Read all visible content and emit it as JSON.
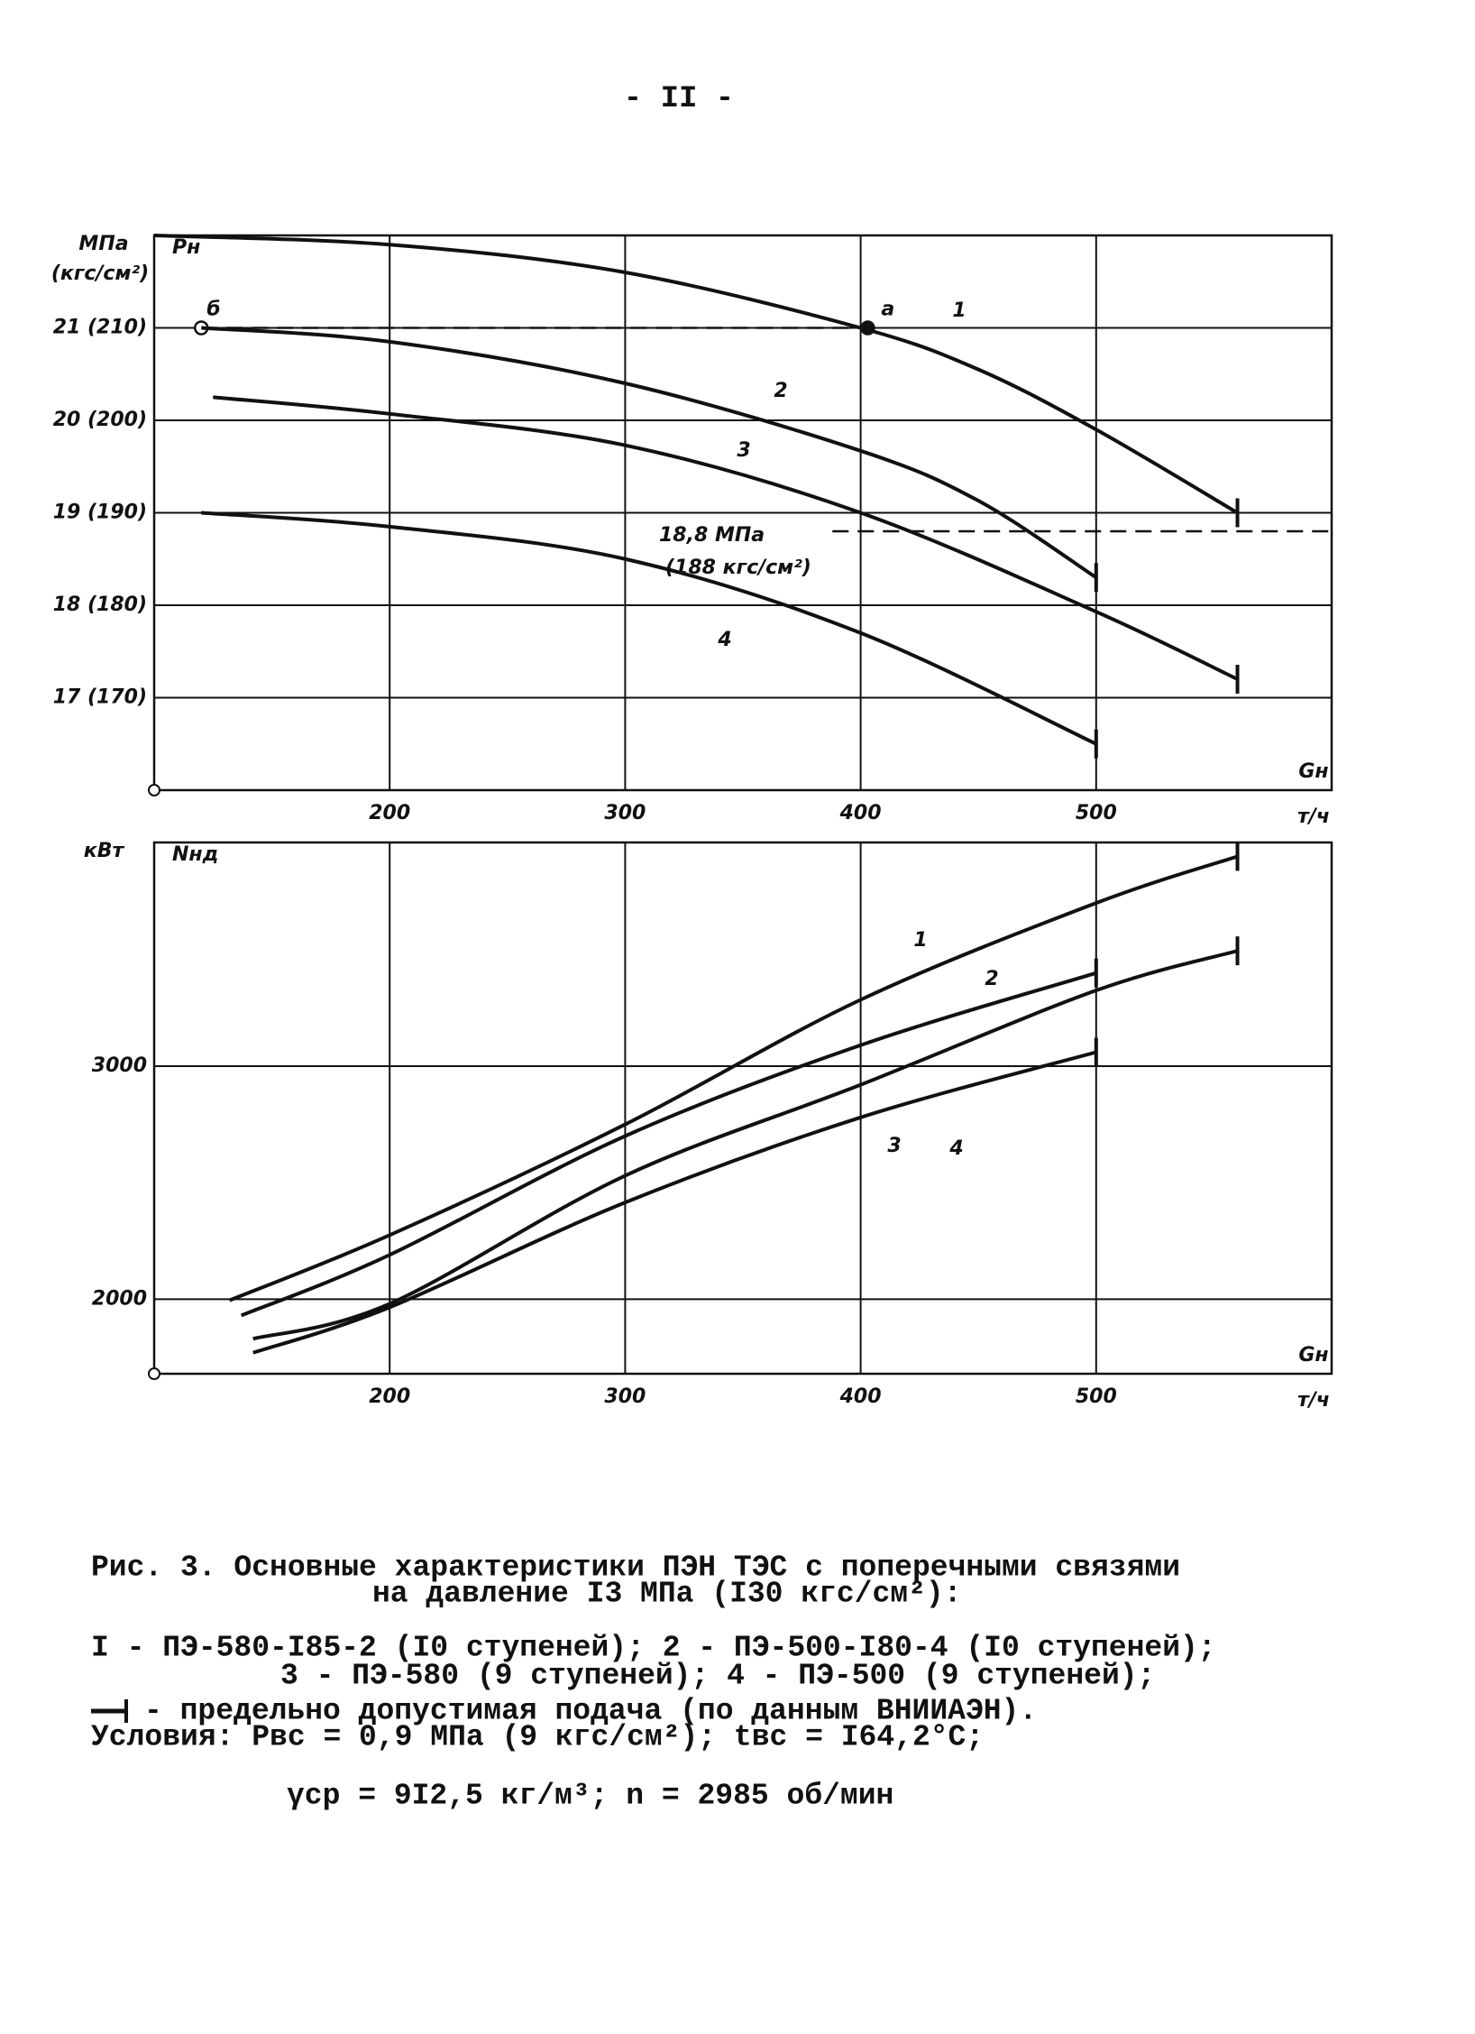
{
  "page_number": "- II -",
  "chart_data": [
    {
      "type": "line",
      "y_unit_label": "МПа",
      "y_unit_label_2": "(кгс/см²)",
      "y_label": "Pн",
      "x_label": "Gн",
      "x_unit": "т/ч",
      "xlim": [
        100,
        600
      ],
      "ylim": [
        16,
        22
      ],
      "xticks": [
        200,
        300,
        400,
        500
      ],
      "yticks": [
        {
          "value": 17,
          "label": "17 (170)"
        },
        {
          "value": 18,
          "label": "18 (180)"
        },
        {
          "value": 19,
          "label": "19 (190)"
        },
        {
          "value": 20,
          "label": "20 (200)"
        },
        {
          "value": 21,
          "label": "21 (210)"
        }
      ],
      "grid": true,
      "series": [
        {
          "name": "1",
          "color": "#111111",
          "x": [
            100,
            200,
            300,
            400,
            450,
            500,
            560
          ],
          "values": [
            22.0,
            21.9,
            21.6,
            21.0,
            20.55,
            19.9,
            19.0
          ]
        },
        {
          "name": "2",
          "color": "#111111",
          "x": [
            120,
            200,
            300,
            400,
            450,
            500
          ],
          "values": [
            21.0,
            20.85,
            20.4,
            19.67,
            19.13,
            18.3
          ]
        },
        {
          "name": "3",
          "color": "#111111",
          "x": [
            125,
            200,
            300,
            400,
            500,
            560
          ],
          "values": [
            20.25,
            20.07,
            19.73,
            19.0,
            17.93,
            17.2
          ]
        },
        {
          "name": "4",
          "color": "#111111",
          "x": [
            120,
            200,
            300,
            400,
            500
          ],
          "values": [
            19.0,
            18.85,
            18.5,
            17.7,
            16.5
          ]
        }
      ],
      "points": [
        {
          "label": "а",
          "x": 403,
          "y": 21.0,
          "filled": true
        },
        {
          "label": "б",
          "x": 120,
          "y": 21.0,
          "filled": false
        }
      ],
      "reference_line": {
        "y": 18.8,
        "x_from": 388,
        "label_lines": [
          "18,8 МПа",
          "(188 кгс/см²)"
        ]
      }
    },
    {
      "type": "line",
      "y_unit_label": "кВт",
      "y_label": "Nнд",
      "x_label": "Gн",
      "x_unit": "т/ч",
      "xlim": [
        100,
        600
      ],
      "ylim": [
        1680,
        3960
      ],
      "xticks": [
        200,
        300,
        400,
        500
      ],
      "yticks": [
        2000,
        3000
      ],
      "grid": true,
      "series": [
        {
          "name": "1",
          "color": "#111111",
          "x": [
            132,
            200,
            300,
            400,
            500,
            560
          ],
          "values": [
            1995,
            2275,
            2750,
            3285,
            3700,
            3900
          ]
        },
        {
          "name": "2",
          "color": "#111111",
          "x": [
            137,
            200,
            300,
            400,
            500
          ],
          "values": [
            1930,
            2190,
            2700,
            3090,
            3400
          ]
        },
        {
          "name": "3",
          "color": "#111111",
          "x": [
            142,
            200,
            300,
            400,
            500,
            560
          ],
          "values": [
            1830,
            1980,
            2530,
            2920,
            3325,
            3495
          ]
        },
        {
          "name": "4",
          "color": "#111111",
          "x": [
            142,
            200,
            300,
            400,
            500
          ],
          "values": [
            1770,
            1965,
            2415,
            2780,
            3060
          ]
        }
      ]
    }
  ],
  "caption": {
    "lines": [
      "Рис. 3. Основные характеристики ПЭН ТЭС с поперечными связями",
      "на давление I3 МПа (I30 кгс/см²):",
      "I - ПЭ-580-I85-2 (I0 ступеней); 2 - ПЭ-500-I80-4 (I0 ступеней);",
      "3 - ПЭ-580 (9 ступеней); 4 - ПЭ-500 (9 ступеней);",
      "- предельно допустимая подача (по данным ВНИИАЭН).",
      "Условия: Pвс = 0,9 МПа (9 кгс/см²);  tвс = I64,2°С;",
      "γср = 9I2,5 кг/м³;  n = 2985 об/мин"
    ]
  }
}
